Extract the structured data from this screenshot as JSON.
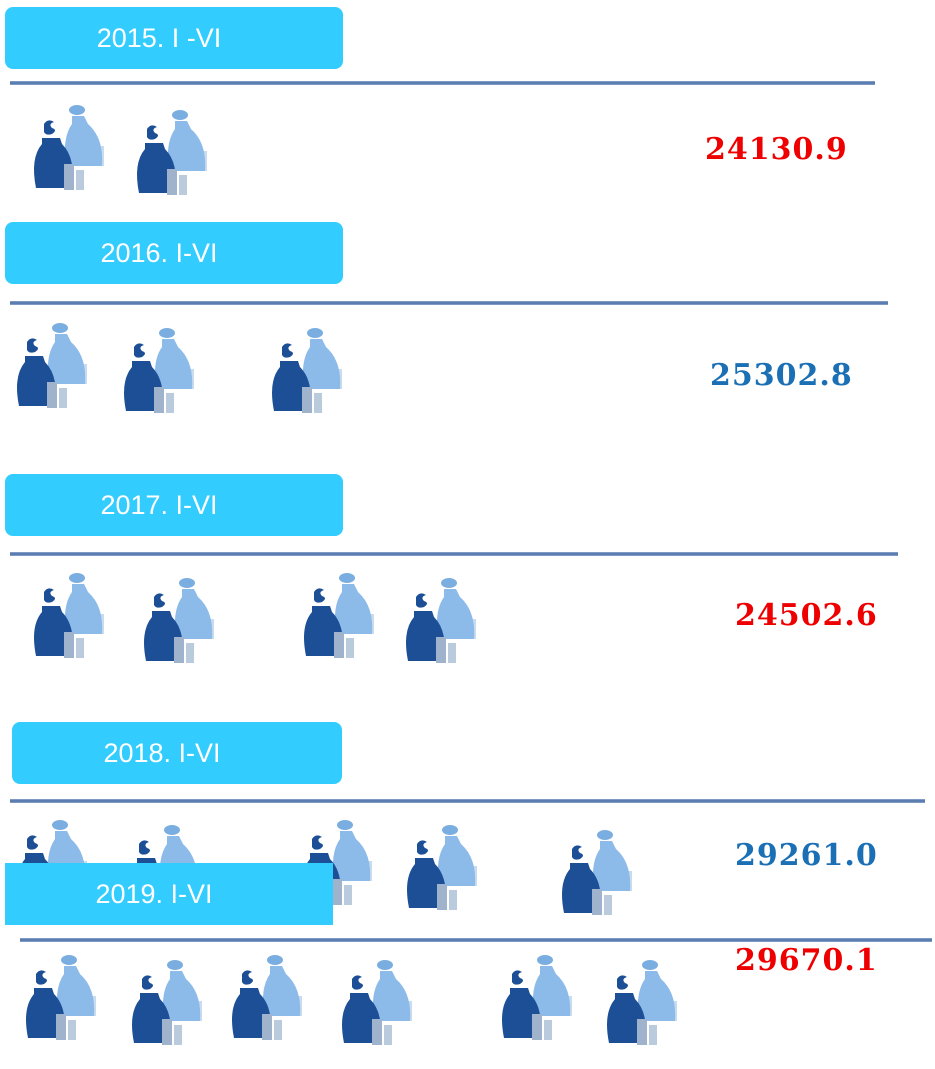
{
  "rows": [
    {
      "label": "2015. I -VI",
      "value": "24130.9"
    },
    {
      "label": "2016. I-VI",
      "value": "25302.8"
    },
    {
      "label": "2017. I-VI",
      "value": "24502.6"
    },
    {
      "label": "2018. I-VI",
      "value": "29261.0"
    },
    {
      "label": "2019. I-VI",
      "value": "29670.1"
    }
  ]
}
